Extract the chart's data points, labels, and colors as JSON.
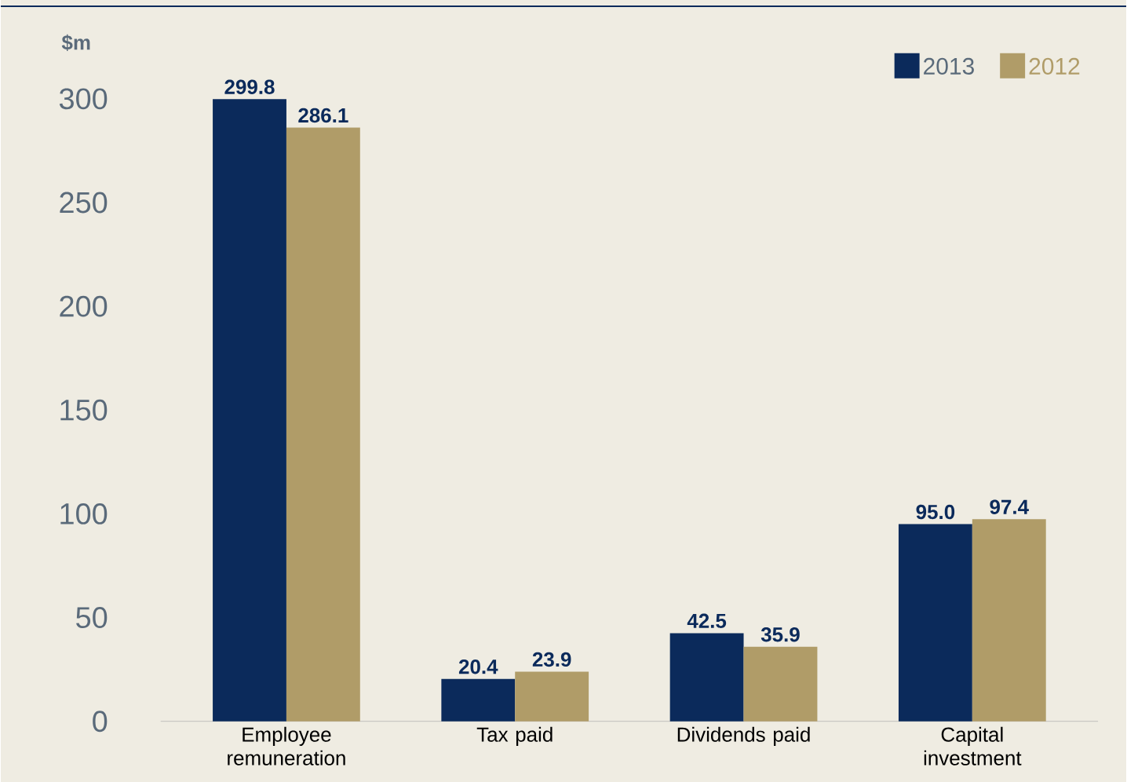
{
  "chart_data": {
    "type": "bar",
    "ylabel": "$m",
    "categories": [
      "Employee remuneration",
      "Tax paid",
      "Dividends paid",
      "Capital investment"
    ],
    "series": [
      {
        "name": "2013",
        "color": "#0b2a5b",
        "values": [
          299.8,
          20.4,
          42.5,
          95.0
        ],
        "value_labels": [
          "299.8",
          "20.4",
          "42.5",
          "95.0"
        ]
      },
      {
        "name": "2012",
        "color": "#b09c68",
        "values": [
          286.1,
          23.9,
          35.9,
          97.4
        ],
        "value_labels": [
          "286.1",
          "23.9",
          "35.9",
          "97.4"
        ]
      }
    ],
    "ylim": [
      0,
      300
    ],
    "yticks": [
      0,
      50,
      100,
      150,
      200,
      250,
      300
    ],
    "legend": "top right"
  }
}
